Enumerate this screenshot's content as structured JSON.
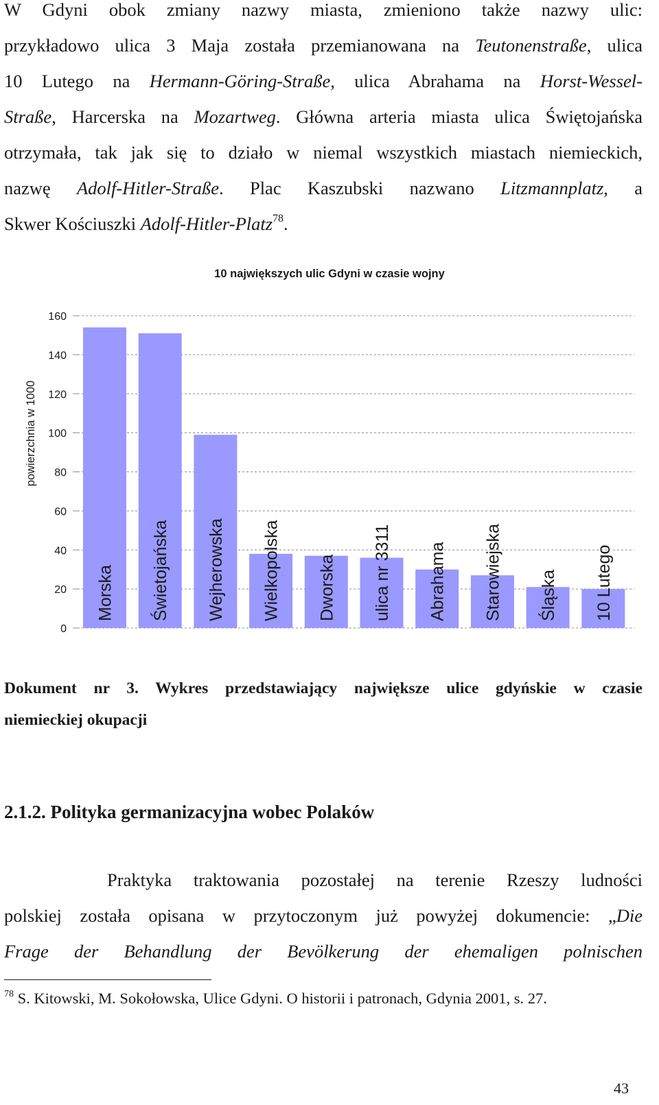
{
  "paragraph1": {
    "lines": [
      "W Gdyni obok zmiany nazwy miasta, zmieniono także nazwy ulic:",
      "przykładowo ulica 3 Maja została przemianowana na |Teutonenstraße|, ulica",
      "10 Lutego na |Hermann-Göring-Straße,| ulica Abrahama na |Horst-Wessel-|",
      "|Straße|, Harcerska na |Mozartweg|. Główna arteria miasta ulica Świętojańska",
      "otrzymała, tak jak się to działo w niemal wszystkich miastach niemieckich,",
      "nazwę |Adolf-Hitler-Straße|. Plac Kaszubski nazwano |Litzmannplatz|, a",
      "Skwer Kościuszki |Adolf-Hitler-Platz|"
    ],
    "footnote_ref": "78",
    "end_punct": "."
  },
  "chart_data": {
    "type": "bar",
    "title": "10 największych ulic Gdyni w czasie wojny",
    "ylabel": "powierzchnia w 1000",
    "xlabel": "",
    "ylim": [
      0,
      160
    ],
    "yticks": [
      0,
      20,
      40,
      60,
      80,
      100,
      120,
      140,
      160
    ],
    "grid": true,
    "bar_color": "#9999ff",
    "grid_color": "#8c8c8c",
    "categories": [
      "Morska",
      "Świetojańska",
      "Wejherowska",
      "Wielkopolska",
      "Dworska",
      "ulica nr 3311",
      "Abrahama",
      "Starowiejska",
      "Śląska",
      "10 Lutego"
    ],
    "values": [
      154,
      151,
      99,
      38,
      37,
      36,
      30,
      27,
      21,
      20
    ]
  },
  "caption": {
    "lines": [
      "Dokument nr 3. Wykres przedstawiający największe ulice gdyńskie w czasie",
      "niemieckiej okupacji"
    ]
  },
  "section_heading": "2.1.2. Polityka germanizacyjna wobec Polaków",
  "paragraph2": {
    "lines": [
      "Praktyka traktowania pozostałej na terenie Rzeszy ludności",
      "polskiej została opisana w przytoczonym już powyżej dokumencie: „|Die|",
      "|Frage der Behandlung der Bevölkerung der ehemaligen polnischen|"
    ]
  },
  "footnote": {
    "number": "78",
    "text": "S. Kitowski, M. Sokołowska, Ulice Gdyni. O historii i patronach, Gdynia 2001, s. 27."
  },
  "page_number": "43"
}
